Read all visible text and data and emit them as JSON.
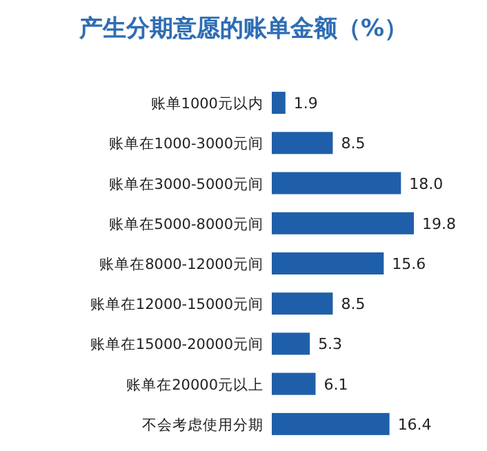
{
  "chart_data": {
    "type": "bar",
    "orientation": "horizontal",
    "title": "产生分期意愿的账单金额（%）",
    "categories": [
      "账单1000元以内",
      "账单在1000-3000元间",
      "账单在3000-5000元间",
      "账单在5000-8000元间",
      "账单在8000-12000元间",
      "账单在12000-15000元间",
      "账单在15000-20000元间",
      "账单在20000元以上",
      "不会考虑使用分期"
    ],
    "values": [
      1.9,
      8.5,
      18.0,
      19.8,
      15.6,
      8.5,
      5.3,
      6.1,
      16.4
    ],
    "value_labels": [
      "1.9",
      "8.5",
      "18.0",
      "19.8",
      "15.6",
      "8.5",
      "5.3",
      "6.1",
      "16.4"
    ],
    "color": "#1f5faa",
    "data_labels": true
  }
}
